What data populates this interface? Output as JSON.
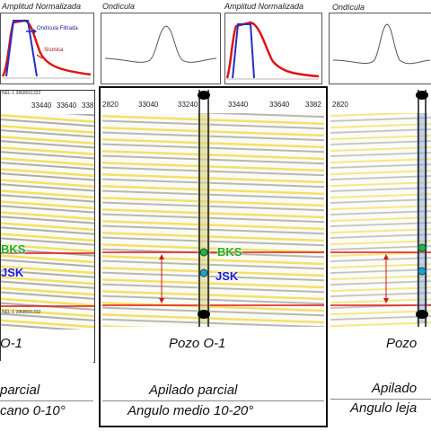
{
  "top": {
    "titles": [
      "Amplitud Normalizada",
      "Ondícula",
      "Amplitud Normalizada",
      "Ondícula"
    ],
    "legend_filtered": "Ondícula Filtrada",
    "legend_seismic": "Sísmica"
  },
  "panels": [
    {
      "ticks": [
        "33440",
        "33640",
        "338"
      ],
      "well_header": "NEL-1 3868001332",
      "well_footer": "NEL-1 3868001332",
      "marker_top": "BKS",
      "marker_bottom": "JSK",
      "label_well": "O-1",
      "label_stack": "parcial",
      "label_angle": "cano 0-10°"
    },
    {
      "ticks": [
        "2820",
        "33040",
        "33240",
        "33440",
        "33640",
        "3382"
      ],
      "marker_top": "BKS",
      "marker_bottom": "JSK",
      "label_well": "Pozo O-1",
      "label_stack": "Apilado parcial",
      "label_angle": "Angulo medio 10-20°"
    },
    {
      "ticks": [
        "2820"
      ],
      "label_well": "Pozo",
      "label_stack": "Apilado",
      "label_angle": "Angulo leja"
    }
  ],
  "colors": {
    "horizon_red": "#e01515",
    "arrow_red": "#d21a1a",
    "bks_green": "#1fb01f",
    "jsk_blue": "#1a1ad8"
  }
}
